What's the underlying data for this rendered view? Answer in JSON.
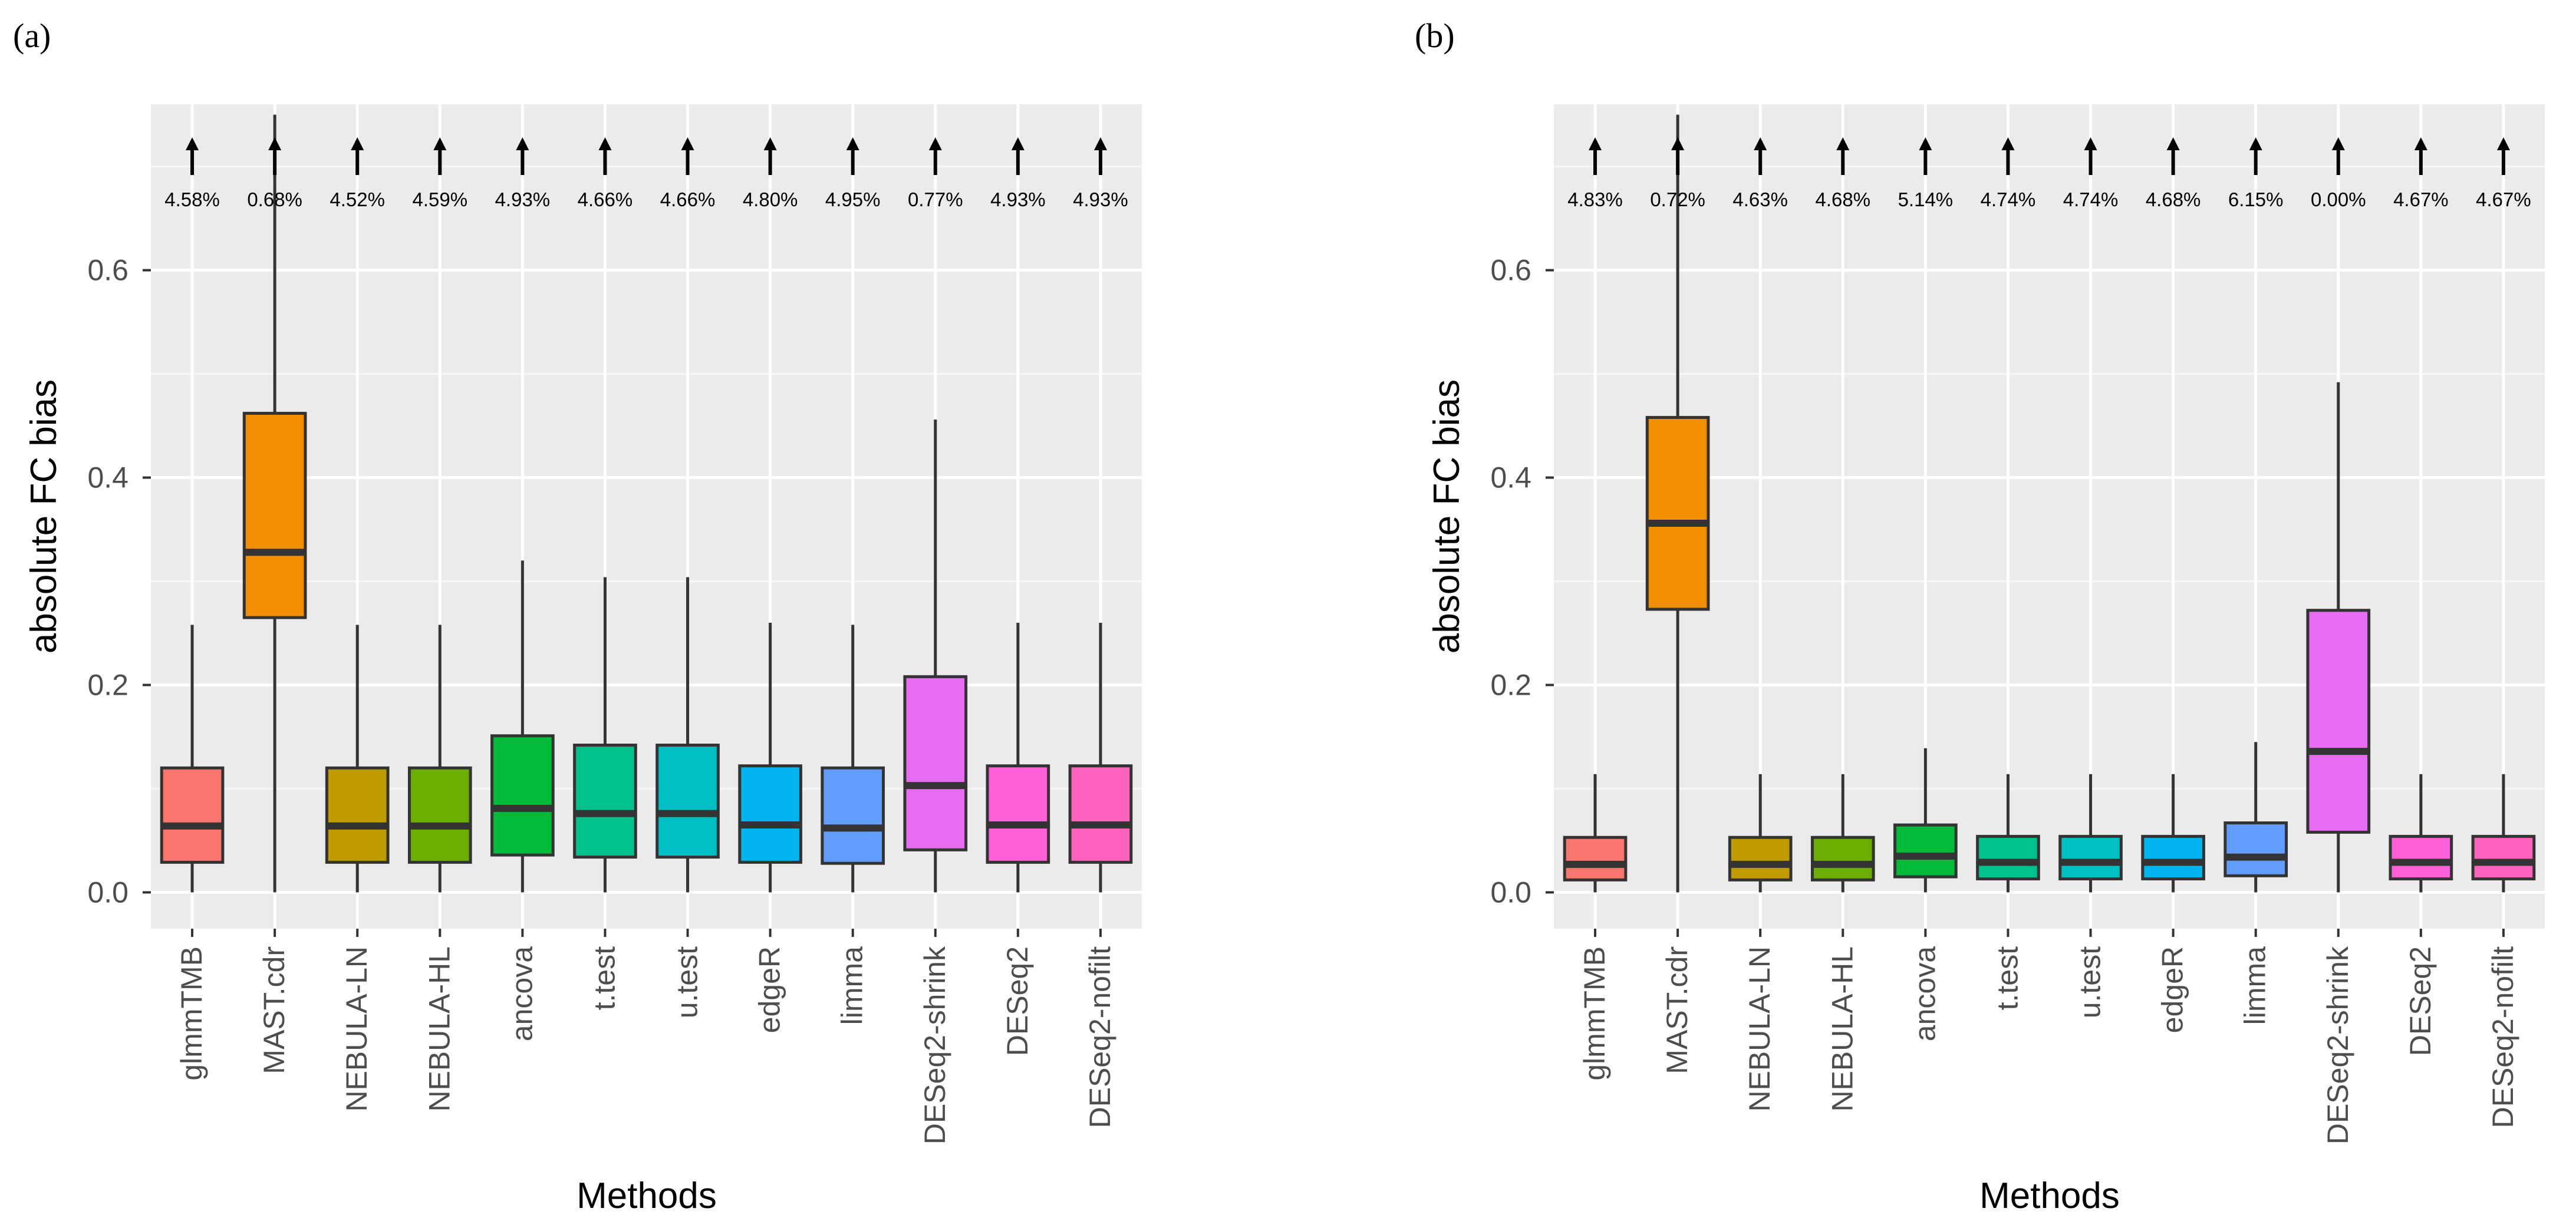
{
  "chart_data": [
    {
      "panel": "(a)",
      "type": "boxplot",
      "xlabel": "Methods",
      "ylabel": "absolute FC bias",
      "ylim": [
        -0.035,
        0.76
      ],
      "yticks": [
        0.0,
        0.2,
        0.4,
        0.6
      ],
      "ytick_labels": [
        "0.0",
        "0.2",
        "0.4",
        "0.6"
      ],
      "methods": [
        {
          "name": "glmmTMB",
          "color": "#F8766D",
          "min": 0.0,
          "q1": 0.029,
          "median": 0.064,
          "q3": 0.12,
          "max": 0.258,
          "pct": "4.58%"
        },
        {
          "name": "MAST.cdr",
          "color": "#F28E00",
          "min": 0.0,
          "q1": 0.265,
          "median": 0.328,
          "q3": 0.462,
          "max": 0.75,
          "pct": "0.68%"
        },
        {
          "name": "NEBULA-LN",
          "color": "#C09B00",
          "min": 0.0,
          "q1": 0.029,
          "median": 0.064,
          "q3": 0.12,
          "max": 0.258,
          "pct": "4.52%"
        },
        {
          "name": "NEBULA-HL",
          "color": "#6BAE00",
          "min": 0.0,
          "q1": 0.029,
          "median": 0.064,
          "q3": 0.12,
          "max": 0.258,
          "pct": "4.59%"
        },
        {
          "name": "ancova",
          "color": "#00BA38",
          "min": 0.0,
          "q1": 0.036,
          "median": 0.081,
          "q3": 0.151,
          "max": 0.32,
          "pct": "4.93%"
        },
        {
          "name": "t.test",
          "color": "#00C08B",
          "min": 0.0,
          "q1": 0.034,
          "median": 0.076,
          "q3": 0.142,
          "max": 0.304,
          "pct": "4.66%"
        },
        {
          "name": "u.test",
          "color": "#00BFC4",
          "min": 0.0,
          "q1": 0.034,
          "median": 0.076,
          "q3": 0.142,
          "max": 0.304,
          "pct": "4.66%"
        },
        {
          "name": "edgeR",
          "color": "#00B4F0",
          "min": 0.0,
          "q1": 0.029,
          "median": 0.065,
          "q3": 0.122,
          "max": 0.26,
          "pct": "4.80%"
        },
        {
          "name": "limma",
          "color": "#619CFF",
          "min": 0.0,
          "q1": 0.028,
          "median": 0.062,
          "q3": 0.12,
          "max": 0.258,
          "pct": "4.95%"
        },
        {
          "name": "DESeq2-shrink",
          "color": "#E76BF3",
          "min": 0.0,
          "q1": 0.041,
          "median": 0.103,
          "q3": 0.208,
          "max": 0.456,
          "pct": "0.77%"
        },
        {
          "name": "DESeq2",
          "color": "#FF5FD9",
          "min": 0.0,
          "q1": 0.029,
          "median": 0.065,
          "q3": 0.122,
          "max": 0.26,
          "pct": "4.93%"
        },
        {
          "name": "DESeq2-nofilt",
          "color": "#FF62BC",
          "min": 0.0,
          "q1": 0.029,
          "median": 0.065,
          "q3": 0.122,
          "max": 0.26,
          "pct": "4.93%"
        }
      ]
    },
    {
      "panel": "(b)",
      "type": "boxplot",
      "xlabel": "Methods",
      "ylabel": "absolute FC bias",
      "ylim": [
        -0.035,
        0.76
      ],
      "yticks": [
        0.0,
        0.2,
        0.4,
        0.6
      ],
      "ytick_labels": [
        "0.0",
        "0.2",
        "0.4",
        "0.6"
      ],
      "methods": [
        {
          "name": "glmmTMB",
          "color": "#F8766D",
          "min": 0.0,
          "q1": 0.012,
          "median": 0.027,
          "q3": 0.053,
          "max": 0.114,
          "pct": "4.83%"
        },
        {
          "name": "MAST.cdr",
          "color": "#F28E00",
          "min": 0.0,
          "q1": 0.273,
          "median": 0.356,
          "q3": 0.458,
          "max": 0.75,
          "pct": "0.72%"
        },
        {
          "name": "NEBULA-LN",
          "color": "#C09B00",
          "min": 0.0,
          "q1": 0.012,
          "median": 0.027,
          "q3": 0.053,
          "max": 0.114,
          "pct": "4.63%"
        },
        {
          "name": "NEBULA-HL",
          "color": "#6BAE00",
          "min": 0.0,
          "q1": 0.012,
          "median": 0.027,
          "q3": 0.053,
          "max": 0.114,
          "pct": "4.68%"
        },
        {
          "name": "ancova",
          "color": "#00BA38",
          "min": 0.0,
          "q1": 0.015,
          "median": 0.035,
          "q3": 0.065,
          "max": 0.139,
          "pct": "5.14%"
        },
        {
          "name": "t.test",
          "color": "#00C08B",
          "min": 0.0,
          "q1": 0.013,
          "median": 0.029,
          "q3": 0.054,
          "max": 0.114,
          "pct": "4.74%"
        },
        {
          "name": "u.test",
          "color": "#00BFC4",
          "min": 0.0,
          "q1": 0.013,
          "median": 0.029,
          "q3": 0.054,
          "max": 0.114,
          "pct": "4.74%"
        },
        {
          "name": "edgeR",
          "color": "#00B4F0",
          "min": 0.0,
          "q1": 0.013,
          "median": 0.029,
          "q3": 0.054,
          "max": 0.114,
          "pct": "4.68%"
        },
        {
          "name": "limma",
          "color": "#619CFF",
          "min": 0.0,
          "q1": 0.016,
          "median": 0.034,
          "q3": 0.067,
          "max": 0.145,
          "pct": "6.15%"
        },
        {
          "name": "DESeq2-shrink",
          "color": "#E76BF3",
          "min": 0.0,
          "q1": 0.058,
          "median": 0.136,
          "q3": 0.272,
          "max": 0.492,
          "pct": "0.00%"
        },
        {
          "name": "DESeq2",
          "color": "#FF5FD9",
          "min": 0.0,
          "q1": 0.013,
          "median": 0.029,
          "q3": 0.054,
          "max": 0.114,
          "pct": "4.67%"
        },
        {
          "name": "DESeq2-nofilt",
          "color": "#FF62BC",
          "min": 0.0,
          "q1": 0.013,
          "median": 0.029,
          "q3": 0.054,
          "max": 0.114,
          "pct": "4.67%"
        }
      ]
    }
  ]
}
